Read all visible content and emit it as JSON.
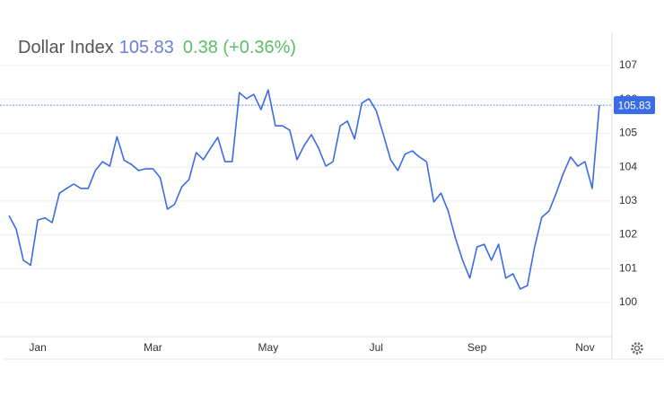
{
  "chart_data": {
    "type": "line",
    "title": "Dollar Index",
    "change": "0.38 (+0.36%)",
    "color": "#3b6ce6",
    "ylim": [
      99,
      108
    ],
    "yticks": [
      100,
      101,
      102,
      103,
      104,
      105,
      106,
      107
    ],
    "grid": true,
    "categories": [
      null,
      null,
      null,
      null,
      "Jan",
      null,
      null,
      null,
      null,
      null,
      null,
      null,
      null,
      null,
      null,
      null,
      null,
      null,
      null,
      null,
      "Mar",
      null,
      null,
      null,
      null,
      null,
      null,
      null,
      null,
      null,
      null,
      null,
      null,
      null,
      null,
      null,
      "May",
      null,
      null,
      null,
      null,
      null,
      null,
      null,
      null,
      null,
      null,
      null,
      null,
      null,
      null,
      "Jul",
      null,
      null,
      null,
      null,
      null,
      null,
      null,
      null,
      null,
      null,
      null,
      null,
      null,
      "Sep",
      null,
      null,
      null,
      null,
      null,
      null,
      null,
      null,
      null,
      null,
      null,
      null,
      null,
      null,
      "Nov",
      null,
      null
    ],
    "values": [
      102.57,
      102.17,
      101.25,
      101.1,
      102.44,
      102.5,
      102.36,
      103.23,
      103.37,
      103.5,
      103.37,
      103.37,
      103.9,
      104.16,
      104.03,
      104.9,
      104.2,
      104.08,
      103.9,
      103.95,
      103.95,
      103.69,
      102.76,
      102.9,
      103.42,
      103.63,
      104.43,
      104.22,
      104.56,
      104.88,
      104.16,
      104.16,
      106.2,
      106.02,
      106.15,
      105.7,
      106.28,
      105.22,
      105.22,
      105.09,
      104.22,
      104.64,
      104.96,
      104.56,
      104.03,
      104.16,
      105.22,
      105.36,
      104.83,
      105.89,
      106.02,
      105.67,
      104.96,
      104.22,
      103.9,
      104.38,
      104.48,
      104.3,
      104.16,
      102.97,
      103.23,
      102.7,
      101.91,
      101.25,
      100.72,
      101.64,
      101.72,
      101.25,
      101.72,
      100.72,
      100.85,
      100.4,
      100.5,
      101.64,
      102.52,
      102.7,
      103.23,
      103.82,
      104.3,
      104.03,
      104.16,
      103.37,
      105.83
    ]
  }
}
